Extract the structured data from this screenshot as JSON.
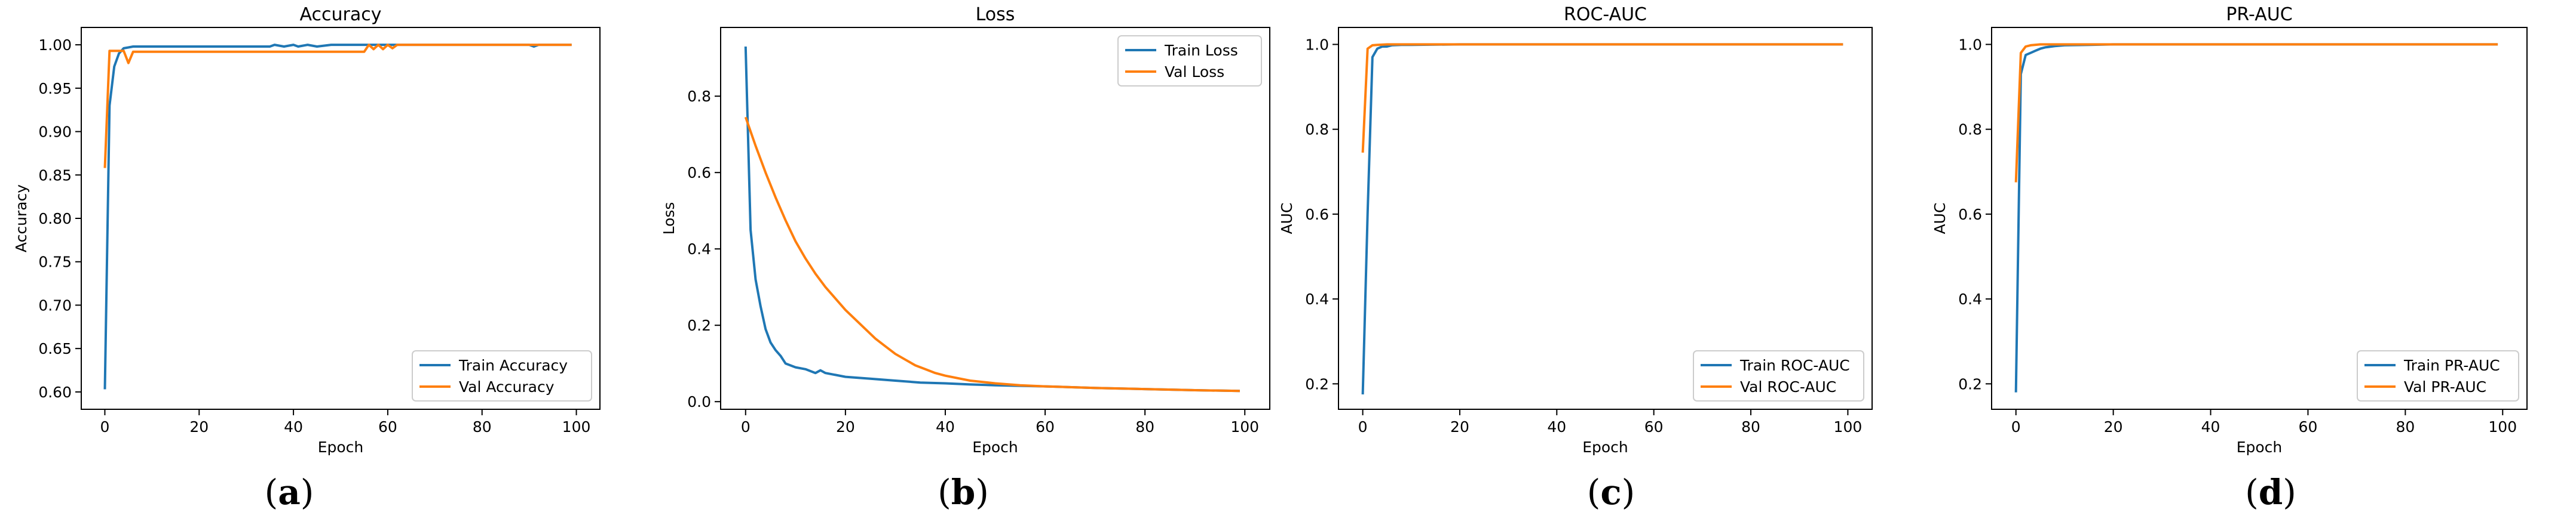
{
  "colors": {
    "train": "#1f77b4",
    "val": "#ff7f0e"
  },
  "panel_labels": [
    "a",
    "b",
    "c",
    "d"
  ],
  "chart_data": [
    {
      "type": "line",
      "title": "Accuracy",
      "xlabel": "Epoch",
      "ylabel": "Accuracy",
      "xlim": [
        -5,
        105
      ],
      "ylim": [
        0.58,
        1.02
      ],
      "xticks": [
        0,
        20,
        40,
        60,
        80,
        100
      ],
      "yticks": [
        0.6,
        0.65,
        0.7,
        0.75,
        0.8,
        0.85,
        0.9,
        0.95,
        1.0
      ],
      "ytick_decimals": 2,
      "legend_position": "lower right",
      "series": [
        {
          "name": "Train Accuracy",
          "color": "#1f77b4",
          "x": [
            0,
            1,
            2,
            3,
            4,
            5,
            6,
            7,
            8,
            10,
            15,
            20,
            25,
            30,
            35,
            36,
            38,
            40,
            41,
            43,
            45,
            48,
            50,
            55,
            60,
            70,
            80,
            90,
            91,
            92,
            99
          ],
          "y": [
            0.603,
            0.93,
            0.975,
            0.99,
            0.996,
            0.997,
            0.998,
            0.998,
            0.998,
            0.998,
            0.998,
            0.998,
            0.998,
            0.998,
            0.998,
            1.0,
            0.998,
            1.0,
            0.998,
            1.0,
            0.998,
            1.0,
            1.0,
            1.0,
            1.0,
            1.0,
            1.0,
            1.0,
            0.998,
            1.0,
            1.0
          ]
        },
        {
          "name": "Val Accuracy",
          "color": "#ff7f0e",
          "x": [
            0,
            1,
            2,
            3,
            4,
            5,
            6,
            7,
            8,
            10,
            20,
            30,
            40,
            50,
            55,
            56,
            57,
            58,
            59,
            60,
            61,
            62,
            65,
            70,
            80,
            90,
            99
          ],
          "y": [
            0.858,
            0.993,
            0.993,
            0.993,
            0.993,
            0.979,
            0.992,
            0.992,
            0.992,
            0.992,
            0.992,
            0.992,
            0.992,
            0.992,
            0.992,
            1.0,
            0.995,
            1.0,
            0.995,
            1.0,
            0.996,
            1.0,
            1.0,
            1.0,
            1.0,
            1.0,
            1.0
          ]
        }
      ]
    },
    {
      "type": "line",
      "title": "Loss",
      "xlabel": "Epoch",
      "ylabel": "Loss",
      "xlim": [
        -5,
        105
      ],
      "ylim": [
        -0.02,
        0.98
      ],
      "xticks": [
        0,
        20,
        40,
        60,
        80,
        100
      ],
      "yticks": [
        0.0,
        0.2,
        0.4,
        0.6,
        0.8
      ],
      "ytick_decimals": 1,
      "legend_position": "upper right",
      "series": [
        {
          "name": "Train Loss",
          "color": "#1f77b4",
          "x": [
            0,
            1,
            2,
            3,
            4,
            5,
            6,
            7,
            8,
            10,
            12,
            14,
            15,
            16,
            18,
            20,
            25,
            30,
            35,
            40,
            45,
            50,
            60,
            70,
            80,
            90,
            99
          ],
          "y": [
            0.93,
            0.45,
            0.32,
            0.25,
            0.19,
            0.155,
            0.135,
            0.12,
            0.1,
            0.09,
            0.085,
            0.075,
            0.082,
            0.075,
            0.07,
            0.065,
            0.06,
            0.055,
            0.05,
            0.048,
            0.045,
            0.043,
            0.04,
            0.036,
            0.033,
            0.03,
            0.028
          ]
        },
        {
          "name": "Val Loss",
          "color": "#ff7f0e",
          "x": [
            0,
            2,
            4,
            6,
            8,
            10,
            12,
            14,
            16,
            18,
            20,
            22,
            24,
            26,
            28,
            30,
            32,
            34,
            36,
            38,
            40,
            45,
            50,
            55,
            60,
            70,
            80,
            90,
            99
          ],
          "y": [
            0.745,
            0.67,
            0.6,
            0.535,
            0.475,
            0.42,
            0.375,
            0.335,
            0.3,
            0.27,
            0.24,
            0.215,
            0.19,
            0.165,
            0.145,
            0.125,
            0.11,
            0.095,
            0.085,
            0.075,
            0.068,
            0.055,
            0.048,
            0.043,
            0.04,
            0.036,
            0.033,
            0.03,
            0.028
          ]
        }
      ]
    },
    {
      "type": "line",
      "title": "ROC-AUC",
      "xlabel": "Epoch",
      "ylabel": "AUC",
      "xlim": [
        -5,
        105
      ],
      "ylim": [
        0.14,
        1.04
      ],
      "xticks": [
        0,
        20,
        40,
        60,
        80,
        100
      ],
      "yticks": [
        0.2,
        0.4,
        0.6,
        0.8,
        1.0
      ],
      "ytick_decimals": 1,
      "legend_position": "lower right",
      "series": [
        {
          "name": "Train ROC-AUC",
          "color": "#1f77b4",
          "x": [
            0,
            1,
            2,
            3,
            4,
            5,
            6,
            8,
            10,
            20,
            40,
            60,
            80,
            99
          ],
          "y": [
            0.175,
            0.6,
            0.97,
            0.99,
            0.995,
            0.995,
            0.998,
            0.999,
            0.999,
            1.0,
            1.0,
            1.0,
            1.0,
            1.0
          ]
        },
        {
          "name": "Val ROC-AUC",
          "color": "#ff7f0e",
          "x": [
            0,
            1,
            2,
            3,
            5,
            8,
            10,
            20,
            40,
            60,
            80,
            99
          ],
          "y": [
            0.745,
            0.99,
            0.998,
            0.999,
            1.0,
            1.0,
            1.0,
            1.0,
            1.0,
            1.0,
            1.0,
            1.0
          ]
        }
      ]
    },
    {
      "type": "line",
      "title": "PR-AUC",
      "xlabel": "Epoch",
      "ylabel": "AUC",
      "xlim": [
        -5,
        105
      ],
      "ylim": [
        0.14,
        1.04
      ],
      "xticks": [
        0,
        20,
        40,
        60,
        80,
        100
      ],
      "yticks": [
        0.2,
        0.4,
        0.6,
        0.8,
        1.0
      ],
      "ytick_decimals": 1,
      "legend_position": "lower right",
      "series": [
        {
          "name": "Train PR-AUC",
          "color": "#1f77b4",
          "x": [
            0,
            1,
            2,
            3,
            4,
            5,
            6,
            8,
            10,
            15,
            20,
            30,
            40,
            60,
            80,
            99
          ],
          "y": [
            0.18,
            0.93,
            0.975,
            0.98,
            0.985,
            0.99,
            0.993,
            0.996,
            0.998,
            0.999,
            1.0,
            1.0,
            1.0,
            1.0,
            1.0,
            1.0
          ]
        },
        {
          "name": "Val PR-AUC",
          "color": "#ff7f0e",
          "x": [
            0,
            1,
            2,
            3,
            5,
            8,
            10,
            20,
            40,
            60,
            80,
            99
          ],
          "y": [
            0.675,
            0.98,
            0.995,
            0.998,
            1.0,
            1.0,
            1.0,
            1.0,
            1.0,
            1.0,
            1.0,
            1.0
          ]
        }
      ]
    }
  ]
}
